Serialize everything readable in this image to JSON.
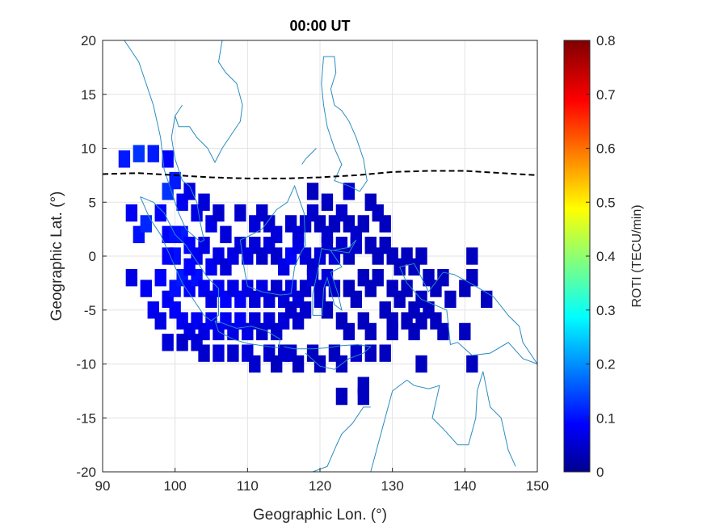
{
  "chart_data": {
    "type": "heatmap",
    "title": "00:00 UT",
    "xlabel": "Geographic Lon. (°)",
    "ylabel": "Geographic Lat. (°)",
    "xlim": [
      90,
      150
    ],
    "ylim": [
      -20,
      20
    ],
    "xticks": [
      "90",
      "100",
      "110",
      "120",
      "130",
      "140",
      "150"
    ],
    "yticks": [
      "20",
      "15",
      "10",
      "5",
      "0",
      "-5",
      "-10",
      "-15",
      "-20"
    ],
    "grid": true,
    "colorbar": {
      "label": "ROTI (TECU/min)",
      "range": [
        0,
        0.8
      ],
      "ticks": [
        "0.8",
        "0.7",
        "0.6",
        "0.5",
        "0.4",
        "0.3",
        "0.2",
        "0.1",
        "0"
      ],
      "colormap": "jet"
    },
    "overlays": {
      "coastline_color": "#2b8cbe",
      "magnetic_equator_style": "black dashed",
      "magnetic_equator": {
        "lon": [
          90,
          95,
          100,
          105,
          110,
          115,
          120,
          125,
          130,
          135,
          140,
          145,
          150
        ],
        "lat": [
          7.6,
          7.7,
          7.5,
          7.3,
          7.2,
          7.2,
          7.3,
          7.5,
          7.8,
          7.9,
          7.9,
          7.7,
          7.5
        ]
      }
    },
    "cells": [
      {
        "lon": 93,
        "lat": 9,
        "v": 0.12
      },
      {
        "lon": 95,
        "lat": 9.5,
        "v": 0.14
      },
      {
        "lon": 97,
        "lat": 9.5,
        "v": 0.12
      },
      {
        "lon": 99,
        "lat": 9,
        "v": 0.1
      },
      {
        "lon": 94,
        "lat": 4,
        "v": 0.09
      },
      {
        "lon": 95,
        "lat": 2,
        "v": 0.11
      },
      {
        "lon": 96,
        "lat": 3,
        "v": 0.13
      },
      {
        "lon": 98,
        "lat": 4,
        "v": 0.1
      },
      {
        "lon": 99,
        "lat": 6,
        "v": 0.14
      },
      {
        "lon": 100,
        "lat": 7,
        "v": 0.12
      },
      {
        "lon": 101,
        "lat": 5,
        "v": 0.09
      },
      {
        "lon": 102,
        "lat": 6,
        "v": 0.08
      },
      {
        "lon": 103,
        "lat": 4,
        "v": 0.08
      },
      {
        "lon": 104,
        "lat": 5,
        "v": 0.07
      },
      {
        "lon": 105,
        "lat": 3,
        "v": 0.08
      },
      {
        "lon": 106,
        "lat": 4,
        "v": 0.06
      },
      {
        "lon": 107,
        "lat": 2,
        "v": 0.07
      },
      {
        "lon": 99,
        "lat": 2,
        "v": 0.1
      },
      {
        "lon": 100,
        "lat": 0,
        "v": 0.11
      },
      {
        "lon": 101,
        "lat": 2,
        "v": 0.12
      },
      {
        "lon": 102,
        "lat": 1,
        "v": 0.1
      },
      {
        "lon": 103,
        "lat": 0,
        "v": 0.09
      },
      {
        "lon": 104,
        "lat": 1,
        "v": 0.08
      },
      {
        "lon": 105,
        "lat": -1,
        "v": 0.09
      },
      {
        "lon": 106,
        "lat": 0,
        "v": 0.08
      },
      {
        "lon": 107,
        "lat": -1,
        "v": 0.07
      },
      {
        "lon": 108,
        "lat": 0,
        "v": 0.08
      },
      {
        "lon": 109,
        "lat": 1,
        "v": 0.07
      },
      {
        "lon": 110,
        "lat": 0,
        "v": 0.08
      },
      {
        "lon": 111,
        "lat": 1,
        "v": 0.07
      },
      {
        "lon": 112,
        "lat": 0,
        "v": 0.06
      },
      {
        "lon": 113,
        "lat": 1,
        "v": 0.07
      },
      {
        "lon": 114,
        "lat": 0,
        "v": 0.06
      },
      {
        "lon": 115,
        "lat": -1,
        "v": 0.08
      },
      {
        "lon": 116,
        "lat": 0,
        "v": 0.1
      },
      {
        "lon": 117,
        "lat": 1,
        "v": 0.08
      },
      {
        "lon": 118,
        "lat": 0,
        "v": 0.07
      },
      {
        "lon": 119,
        "lat": -1,
        "v": 0.06
      },
      {
        "lon": 120,
        "lat": 0,
        "v": 0.07
      },
      {
        "lon": 121,
        "lat": 1,
        "v": 0.06
      },
      {
        "lon": 122,
        "lat": 0,
        "v": 0.07
      },
      {
        "lon": 123,
        "lat": 1,
        "v": 0.06
      },
      {
        "lon": 124,
        "lat": 0,
        "v": 0.05
      },
      {
        "lon": 125,
        "lat": 1,
        "v": 0.06
      },
      {
        "lon": 94,
        "lat": -2,
        "v": 0.08
      },
      {
        "lon": 96,
        "lat": -3,
        "v": 0.09
      },
      {
        "lon": 98,
        "lat": -2,
        "v": 0.1
      },
      {
        "lon": 99,
        "lat": -4,
        "v": 0.09
      },
      {
        "lon": 100,
        "lat": -3,
        "v": 0.11
      },
      {
        "lon": 101,
        "lat": -2,
        "v": 0.12
      },
      {
        "lon": 102,
        "lat": -3,
        "v": 0.1
      },
      {
        "lon": 103,
        "lat": -2,
        "v": 0.11
      },
      {
        "lon": 104,
        "lat": -3,
        "v": 0.09
      },
      {
        "lon": 105,
        "lat": -4,
        "v": 0.08
      },
      {
        "lon": 106,
        "lat": -3,
        "v": 0.09
      },
      {
        "lon": 107,
        "lat": -4,
        "v": 0.1
      },
      {
        "lon": 108,
        "lat": -3,
        "v": 0.08
      },
      {
        "lon": 109,
        "lat": -4,
        "v": 0.09
      },
      {
        "lon": 110,
        "lat": -3,
        "v": 0.08
      },
      {
        "lon": 111,
        "lat": -4,
        "v": 0.07
      },
      {
        "lon": 112,
        "lat": -3,
        "v": 0.08
      },
      {
        "lon": 113,
        "lat": -4,
        "v": 0.07
      },
      {
        "lon": 114,
        "lat": -3,
        "v": 0.06
      },
      {
        "lon": 115,
        "lat": -4,
        "v": 0.07
      },
      {
        "lon": 116,
        "lat": -3,
        "v": 0.08
      },
      {
        "lon": 117,
        "lat": -4,
        "v": 0.07
      },
      {
        "lon": 118,
        "lat": -3,
        "v": 0.06
      },
      {
        "lon": 119,
        "lat": -2,
        "v": 0.07
      },
      {
        "lon": 120,
        "lat": -3,
        "v": 0.06
      },
      {
        "lon": 121,
        "lat": -2,
        "v": 0.07
      },
      {
        "lon": 122,
        "lat": -3,
        "v": 0.06
      },
      {
        "lon": 97,
        "lat": -5,
        "v": 0.09
      },
      {
        "lon": 98,
        "lat": -6,
        "v": 0.08
      },
      {
        "lon": 100,
        "lat": -5,
        "v": 0.1
      },
      {
        "lon": 101,
        "lat": -6,
        "v": 0.09
      },
      {
        "lon": 102,
        "lat": -7,
        "v": 0.08
      },
      {
        "lon": 103,
        "lat": -6,
        "v": 0.09
      },
      {
        "lon": 104,
        "lat": -7,
        "v": 0.08
      },
      {
        "lon": 105,
        "lat": -6,
        "v": 0.09
      },
      {
        "lon": 106,
        "lat": -7,
        "v": 0.08
      },
      {
        "lon": 107,
        "lat": -6,
        "v": 0.09
      },
      {
        "lon": 108,
        "lat": -7,
        "v": 0.08
      },
      {
        "lon": 109,
        "lat": -6,
        "v": 0.09
      },
      {
        "lon": 110,
        "lat": -7,
        "v": 0.08
      },
      {
        "lon": 111,
        "lat": -6,
        "v": 0.07
      },
      {
        "lon": 112,
        "lat": -7,
        "v": 0.06
      },
      {
        "lon": 113,
        "lat": -6,
        "v": 0.07
      },
      {
        "lon": 114,
        "lat": -7,
        "v": 0.06
      },
      {
        "lon": 115,
        "lat": -6,
        "v": 0.07
      },
      {
        "lon": 116,
        "lat": -5,
        "v": 0.06
      },
      {
        "lon": 117,
        "lat": -6,
        "v": 0.06
      },
      {
        "lon": 99,
        "lat": -8,
        "v": 0.07
      },
      {
        "lon": 101,
        "lat": -8,
        "v": 0.06
      },
      {
        "lon": 103,
        "lat": -8,
        "v": 0.07
      },
      {
        "lon": 104,
        "lat": -9,
        "v": 0.06
      },
      {
        "lon": 106,
        "lat": -9,
        "v": 0.07
      },
      {
        "lon": 108,
        "lat": -9,
        "v": 0.06
      },
      {
        "lon": 110,
        "lat": -9,
        "v": 0.07
      },
      {
        "lon": 111,
        "lat": -10,
        "v": 0.06
      },
      {
        "lon": 113,
        "lat": -9,
        "v": 0.06
      },
      {
        "lon": 114,
        "lat": -10,
        "v": 0.05
      },
      {
        "lon": 116,
        "lat": -9,
        "v": 0.06
      },
      {
        "lon": 117,
        "lat": -10,
        "v": 0.05
      },
      {
        "lon": 119,
        "lat": -9,
        "v": 0.05
      },
      {
        "lon": 120,
        "lat": -10,
        "v": 0.05
      },
      {
        "lon": 122,
        "lat": -9,
        "v": 0.05
      },
      {
        "lon": 123,
        "lat": -10,
        "v": 0.05
      },
      {
        "lon": 125,
        "lat": -9,
        "v": 0.06
      },
      {
        "lon": 127,
        "lat": -9,
        "v": 0.05
      },
      {
        "lon": 109,
        "lat": 4,
        "v": 0.06
      },
      {
        "lon": 111,
        "lat": 3,
        "v": 0.07
      },
      {
        "lon": 112,
        "lat": 4,
        "v": 0.06
      },
      {
        "lon": 113,
        "lat": 3,
        "v": 0.06
      },
      {
        "lon": 114,
        "lat": 2,
        "v": 0.07
      },
      {
        "lon": 116,
        "lat": 3,
        "v": 0.06
      },
      {
        "lon": 117,
        "lat": 2,
        "v": 0.07
      },
      {
        "lon": 118,
        "lat": 3,
        "v": 0.06
      },
      {
        "lon": 119,
        "lat": 4,
        "v": 0.06
      },
      {
        "lon": 120,
        "lat": 3,
        "v": 0.05
      },
      {
        "lon": 121,
        "lat": 2,
        "v": 0.06
      },
      {
        "lon": 122,
        "lat": 3,
        "v": 0.05
      },
      {
        "lon": 123,
        "lat": 4,
        "v": 0.06
      },
      {
        "lon": 124,
        "lat": 3,
        "v": 0.05
      },
      {
        "lon": 125,
        "lat": 2,
        "v": 0.06
      },
      {
        "lon": 126,
        "lat": 3,
        "v": 0.05
      },
      {
        "lon": 119,
        "lat": 6,
        "v": 0.05
      },
      {
        "lon": 121,
        "lat": 5,
        "v": 0.05
      },
      {
        "lon": 124,
        "lat": 6,
        "v": 0.06
      },
      {
        "lon": 127,
        "lat": 5,
        "v": 0.05
      },
      {
        "lon": 128,
        "lat": 4,
        "v": 0.05
      },
      {
        "lon": 129,
        "lat": 3,
        "v": 0.05
      },
      {
        "lon": 127,
        "lat": 1,
        "v": 0.05
      },
      {
        "lon": 128,
        "lat": 0,
        "v": 0.05
      },
      {
        "lon": 129,
        "lat": 1,
        "v": 0.05
      },
      {
        "lon": 130,
        "lat": 0,
        "v": 0.05
      },
      {
        "lon": 131,
        "lat": -1,
        "v": 0.05
      },
      {
        "lon": 132,
        "lat": 0,
        "v": 0.05
      },
      {
        "lon": 133,
        "lat": -1,
        "v": 0.05
      },
      {
        "lon": 134,
        "lat": 0,
        "v": 0.05
      },
      {
        "lon": 135,
        "lat": -2,
        "v": 0.05
      },
      {
        "lon": 136,
        "lat": -3,
        "v": 0.05
      },
      {
        "lon": 137,
        "lat": -2,
        "v": 0.05
      },
      {
        "lon": 138,
        "lat": -4,
        "v": 0.05
      },
      {
        "lon": 140,
        "lat": -3,
        "v": 0.05
      },
      {
        "lon": 141,
        "lat": -2,
        "v": 0.05
      },
      {
        "lon": 141,
        "lat": 0,
        "v": 0.05
      },
      {
        "lon": 143,
        "lat": -4,
        "v": 0.05
      },
      {
        "lon": 130,
        "lat": -3,
        "v": 0.05
      },
      {
        "lon": 131,
        "lat": -4,
        "v": 0.05
      },
      {
        "lon": 132,
        "lat": -3,
        "v": 0.05
      },
      {
        "lon": 133,
        "lat": -5,
        "v": 0.05
      },
      {
        "lon": 134,
        "lat": -4,
        "v": 0.05
      },
      {
        "lon": 135,
        "lat": -5,
        "v": 0.05
      },
      {
        "lon": 126,
        "lat": -2,
        "v": 0.05
      },
      {
        "lon": 127,
        "lat": -3,
        "v": 0.05
      },
      {
        "lon": 128,
        "lat": -2,
        "v": 0.05
      },
      {
        "lon": 129,
        "lat": -5,
        "v": 0.05
      },
      {
        "lon": 130,
        "lat": -6,
        "v": 0.05
      },
      {
        "lon": 132,
        "lat": -6,
        "v": 0.05
      },
      {
        "lon": 134,
        "lat": -6,
        "v": 0.05
      },
      {
        "lon": 136,
        "lat": -6,
        "v": 0.05
      },
      {
        "lon": 123,
        "lat": -6,
        "v": 0.05
      },
      {
        "lon": 124,
        "lat": -7,
        "v": 0.05
      },
      {
        "lon": 126,
        "lat": -6,
        "v": 0.05
      },
      {
        "lon": 127,
        "lat": -7,
        "v": 0.05
      },
      {
        "lon": 130,
        "lat": -7,
        "v": 0.05
      },
      {
        "lon": 133,
        "lat": -7,
        "v": 0.05
      },
      {
        "lon": 137,
        "lat": -7,
        "v": 0.05
      },
      {
        "lon": 140,
        "lat": -7,
        "v": 0.05
      },
      {
        "lon": 129,
        "lat": -9,
        "v": 0.05
      },
      {
        "lon": 134,
        "lat": -10,
        "v": 0.05
      },
      {
        "lon": 141,
        "lat": -10,
        "v": 0.05
      },
      {
        "lon": 123,
        "lat": -13,
        "v": 0.05
      },
      {
        "lon": 126,
        "lat": -13,
        "v": 0.05
      },
      {
        "lon": 126,
        "lat": -12,
        "v": 0.05
      },
      {
        "lon": 115,
        "lat": -9,
        "v": 0.06
      },
      {
        "lon": 120,
        "lat": -4,
        "v": 0.06
      },
      {
        "lon": 121,
        "lat": -5,
        "v": 0.05
      },
      {
        "lon": 118,
        "lat": -5,
        "v": 0.06
      },
      {
        "lon": 124,
        "lat": -3,
        "v": 0.05
      },
      {
        "lon": 125,
        "lat": -4,
        "v": 0.05
      },
      {
        "lon": 99,
        "lat": 0,
        "v": 0.1
      },
      {
        "lon": 100,
        "lat": 2,
        "v": 0.11
      },
      {
        "lon": 102,
        "lat": -1,
        "v": 0.1
      }
    ]
  }
}
